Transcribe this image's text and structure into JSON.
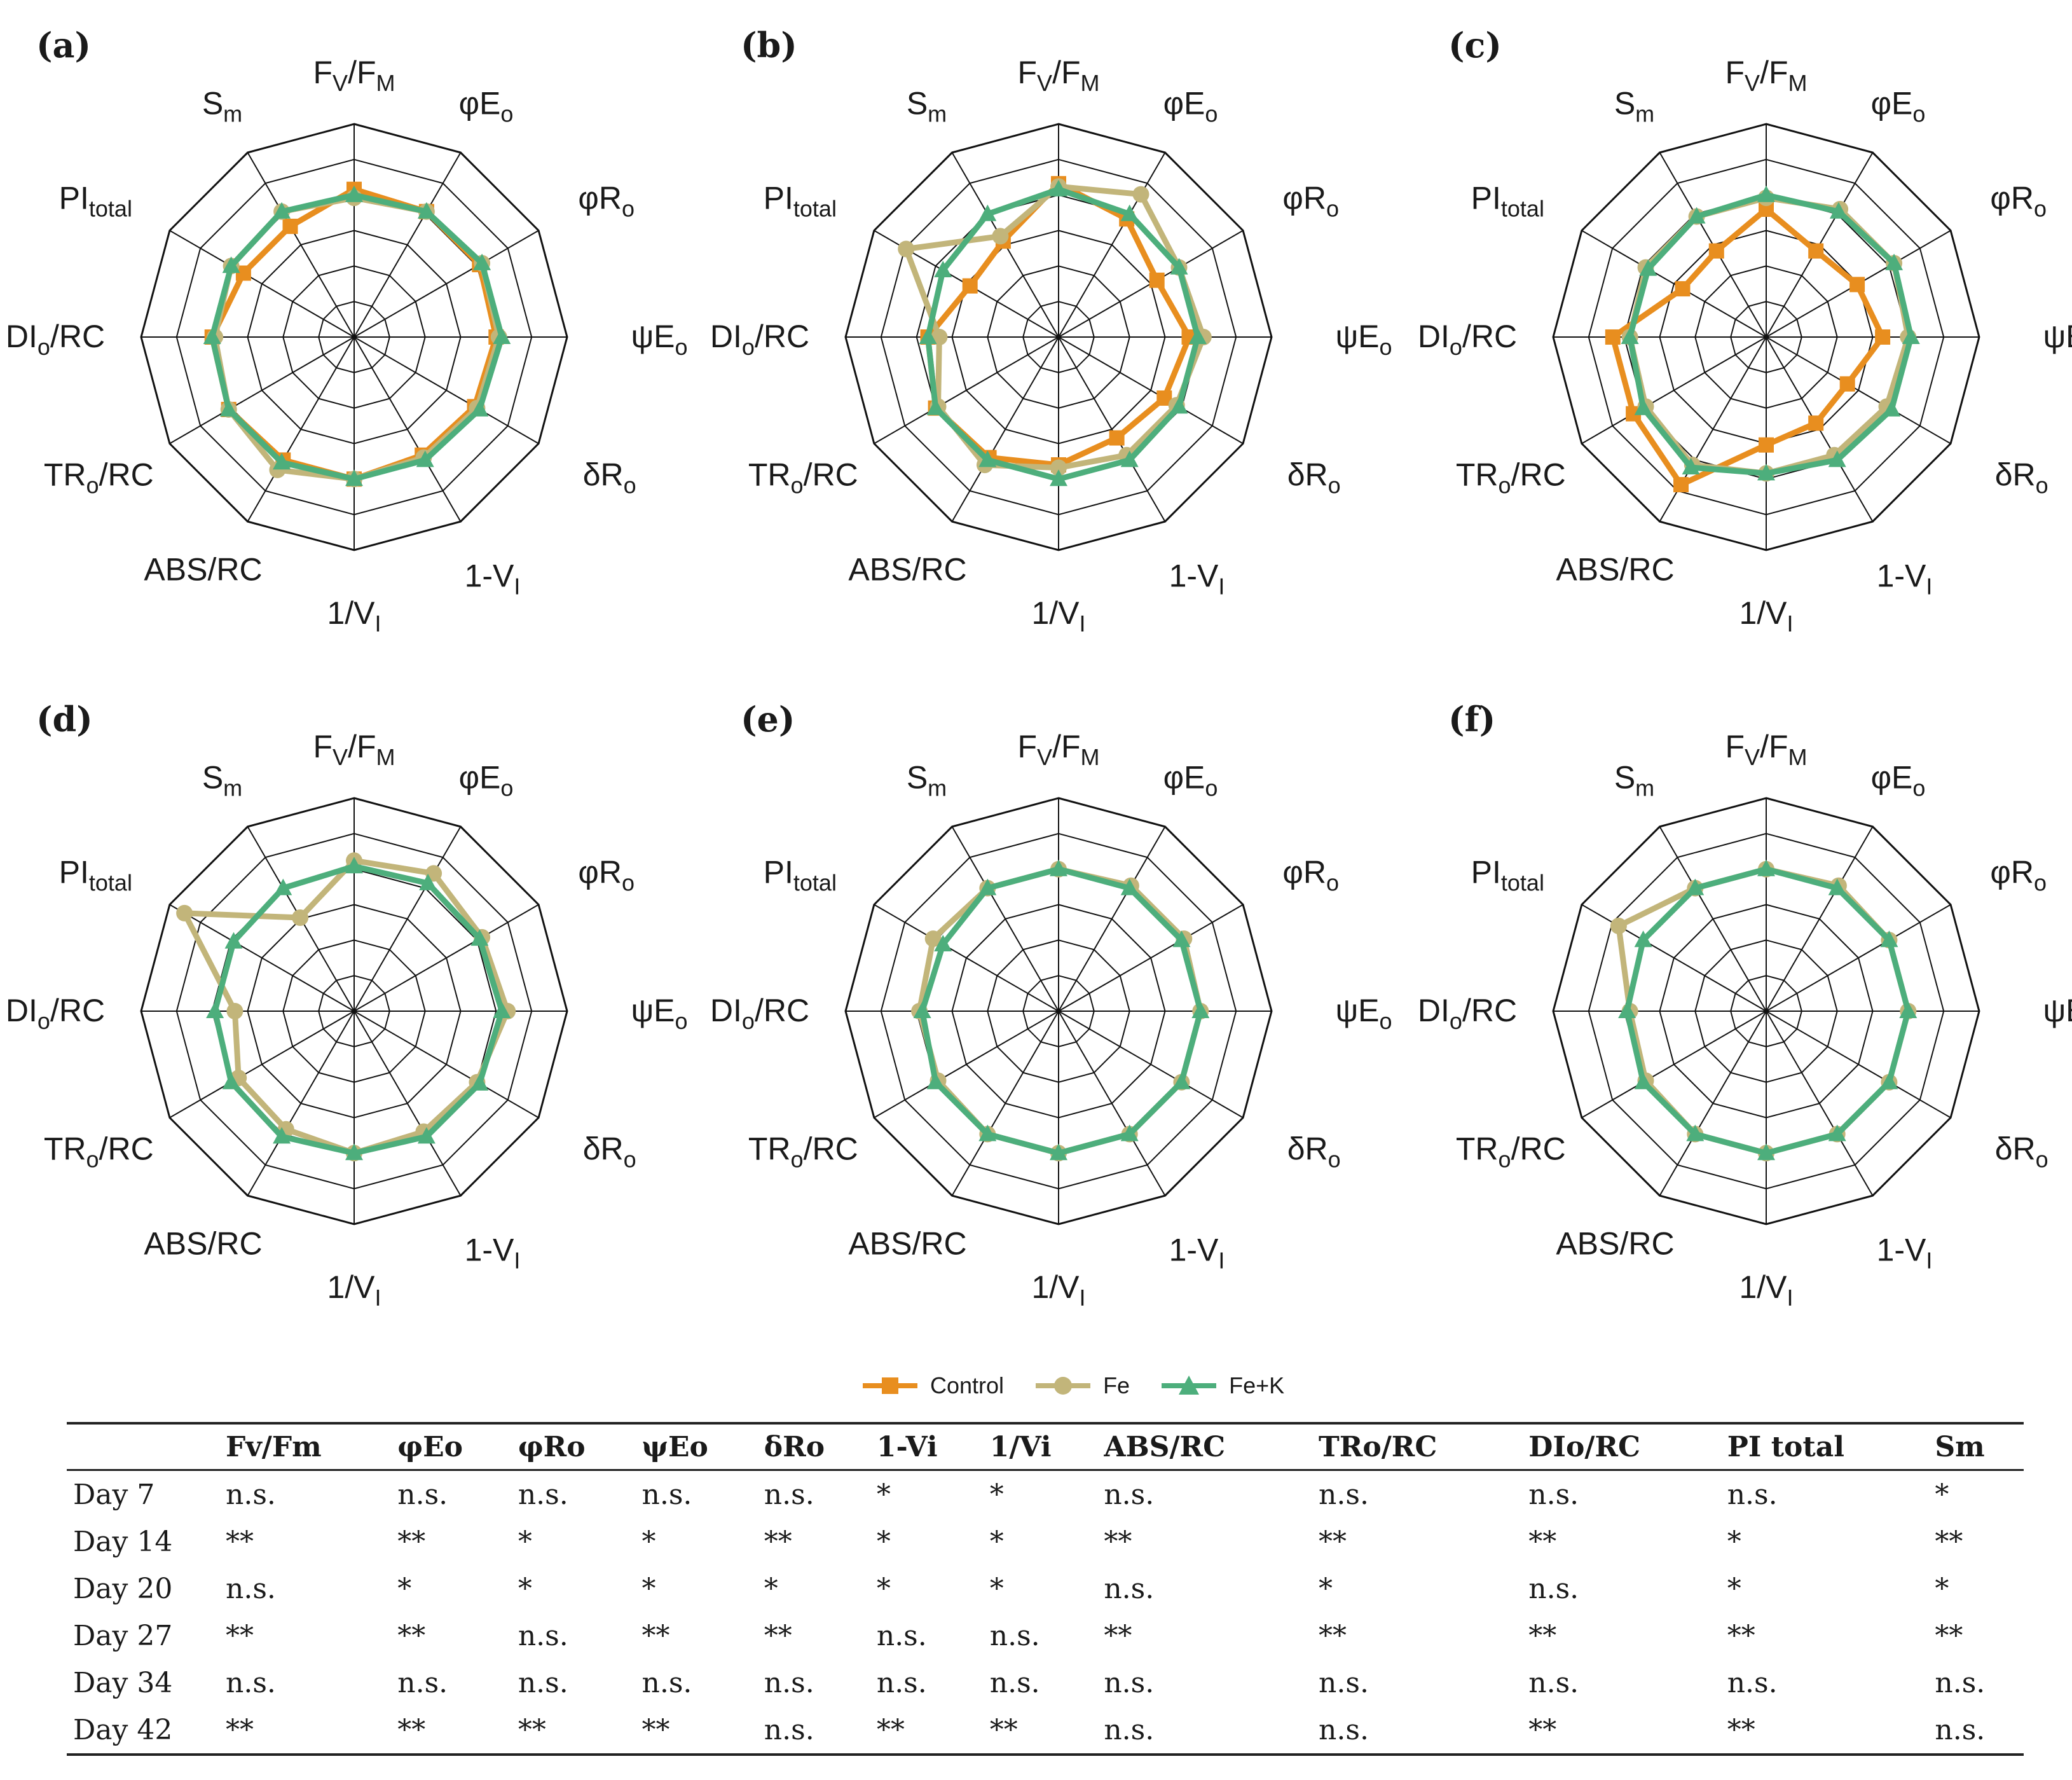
{
  "legend": [
    {
      "name": "Control",
      "color": "#E88E1F",
      "marker": "square"
    },
    {
      "name": "Fe",
      "color": "#C2B57A",
      "marker": "circle"
    },
    {
      "name": "Fe+K",
      "color": "#4DAE7C",
      "marker": "triangle"
    }
  ],
  "axes": [
    {
      "main": "F",
      "sub": "V",
      "mid": "/F",
      "sub2": "M"
    },
    {
      "main": "φE",
      "sub": "o"
    },
    {
      "main": "φR",
      "sub": "o"
    },
    {
      "main": "ψE",
      "sub": "o"
    },
    {
      "main": "δR",
      "sub": "o"
    },
    {
      "main": "1-V",
      "sub": "I"
    },
    {
      "main": "1/V",
      "sub": "I"
    },
    {
      "main": "ABS/RC"
    },
    {
      "main": "TR",
      "sub": "o",
      "mid": "/RC"
    },
    {
      "main": "DI",
      "sub": "o",
      "mid": "/RC"
    },
    {
      "main": "PI",
      "sub": "total"
    },
    {
      "main": "S",
      "sub": "m"
    }
  ],
  "chart_data": [
    {
      "type": "radar",
      "panel": "(a)",
      "rings": 6,
      "rmax": 1.5,
      "categories": [
        "FV/FM",
        "φEo",
        "φRo",
        "ψEo",
        "δRo",
        "1-VI",
        "1/VI",
        "ABS/RC",
        "TRo/RC",
        "DIo/RC",
        "PI total",
        "Sm"
      ],
      "series": [
        {
          "name": "Control",
          "values": [
            1.04,
            1.02,
            1.02,
            1.0,
            0.98,
            0.96,
            1.0,
            1.0,
            1.02,
            1.0,
            0.9,
            0.9
          ]
        },
        {
          "name": "Fe",
          "values": [
            0.98,
            1.02,
            1.04,
            1.02,
            1.0,
            0.98,
            1.0,
            1.08,
            1.02,
            0.98,
            1.0,
            1.02
          ]
        },
        {
          "name": "Fe+K",
          "values": [
            1.0,
            1.02,
            1.04,
            1.04,
            1.02,
            1.0,
            1.0,
            1.02,
            1.02,
            1.0,
            1.0,
            1.02
          ]
        }
      ]
    },
    {
      "type": "radar",
      "panel": "(b)",
      "rings": 6,
      "rmax": 1.5,
      "categories": [
        "FV/FM",
        "φEo",
        "φRo",
        "ψEo",
        "δRo",
        "1-VI",
        "1/VI",
        "ABS/RC",
        "TRo/RC",
        "DIo/RC",
        "PI total",
        "Sm"
      ],
      "series": [
        {
          "name": "Control",
          "values": [
            1.08,
            0.96,
            0.8,
            0.92,
            0.86,
            0.82,
            0.9,
            0.98,
            1.0,
            0.92,
            0.72,
            0.78
          ]
        },
        {
          "name": "Fe",
          "values": [
            1.06,
            1.16,
            0.98,
            1.02,
            0.96,
            0.96,
            0.92,
            1.04,
            0.98,
            0.84,
            1.24,
            0.82
          ]
        },
        {
          "name": "Fe+K",
          "values": [
            1.04,
            1.0,
            0.98,
            0.98,
            0.98,
            1.0,
            1.0,
            1.0,
            1.0,
            0.92,
            0.94,
            1.0
          ]
        }
      ]
    },
    {
      "type": "radar",
      "panel": "(c)",
      "rings": 6,
      "rmax": 1.5,
      "categories": [
        "FV/FM",
        "φEo",
        "φRo",
        "ψEo",
        "δRo",
        "1-VI",
        "1/VI",
        "ABS/RC",
        "TRo/RC",
        "DIo/RC",
        "PI total",
        "Sm"
      ],
      "series": [
        {
          "name": "Control",
          "values": [
            0.9,
            0.7,
            0.74,
            0.82,
            0.66,
            0.7,
            0.76,
            1.2,
            1.08,
            1.08,
            0.68,
            0.7
          ]
        },
        {
          "name": "Fe",
          "values": [
            0.98,
            1.04,
            1.04,
            1.0,
            0.98,
            0.96,
            0.96,
            1.04,
            0.98,
            0.96,
            0.98,
            0.98
          ]
        },
        {
          "name": "Fe+K",
          "values": [
            1.0,
            1.02,
            1.04,
            1.02,
            1.02,
            1.0,
            0.96,
            1.06,
            1.0,
            0.96,
            0.96,
            0.98
          ]
        }
      ]
    },
    {
      "type": "radar",
      "panel": "(d)",
      "rings": 6,
      "rmax": 1.5,
      "categories": [
        "FV/FM",
        "φEo",
        "φRo",
        "ψEo",
        "δRo",
        "1-VI",
        "1/VI",
        "ABS/RC",
        "TRo/RC",
        "DIo/RC",
        "PI total",
        "Sm"
      ],
      "series": [
        {
          "name": "Fe",
          "values": [
            1.06,
            1.12,
            1.04,
            1.08,
            1.0,
            0.98,
            1.0,
            0.96,
            0.94,
            0.84,
            1.38,
            0.76
          ]
        },
        {
          "name": "Fe+K",
          "values": [
            1.02,
            1.04,
            1.02,
            1.04,
            1.02,
            1.02,
            1.0,
            1.02,
            1.0,
            0.98,
            0.98,
            1.0
          ]
        }
      ]
    },
    {
      "type": "radar",
      "panel": "(e)",
      "rings": 6,
      "rmax": 1.5,
      "categories": [
        "FV/FM",
        "φEo",
        "φRo",
        "ψEo",
        "δRo",
        "1-VI",
        "1/VI",
        "ABS/RC",
        "TRo/RC",
        "DIo/RC",
        "PI total",
        "Sm"
      ],
      "series": [
        {
          "name": "Fe",
          "values": [
            1.0,
            1.02,
            1.02,
            1.0,
            1.0,
            1.0,
            1.0,
            1.0,
            0.98,
            0.98,
            1.02,
            1.0
          ]
        },
        {
          "name": "Fe+K",
          "values": [
            1.0,
            1.0,
            1.0,
            1.0,
            1.0,
            1.0,
            1.0,
            1.0,
            1.0,
            0.96,
            0.94,
            1.0
          ]
        }
      ]
    },
    {
      "type": "radar",
      "panel": "(f)",
      "rings": 6,
      "rmax": 1.5,
      "categories": [
        "FV/FM",
        "φEo",
        "φRo",
        "ψEo",
        "δRo",
        "1-VI",
        "1/VI",
        "ABS/RC",
        "TRo/RC",
        "DIo/RC",
        "PI total",
        "Sm"
      ],
      "series": [
        {
          "name": "Fe",
          "values": [
            1.0,
            1.02,
            1.0,
            1.0,
            1.0,
            1.0,
            1.0,
            1.0,
            0.98,
            0.96,
            1.2,
            1.0
          ]
        },
        {
          "name": "Fe+K",
          "values": [
            1.0,
            1.0,
            1.0,
            1.0,
            1.0,
            1.0,
            1.0,
            1.0,
            1.0,
            0.98,
            1.0,
            1.0
          ]
        }
      ]
    }
  ],
  "table": {
    "headers": [
      "",
      "Fv/Fm",
      "φEo",
      "φRo",
      "ψEo",
      "δRo",
      "1-Vi",
      "1/Vi",
      "ABS/RC",
      "TRo/RC",
      "DIo/RC",
      "PI total",
      "Sm"
    ],
    "rows": [
      [
        "Day 7",
        "n.s.",
        "n.s.",
        "n.s.",
        "n.s.",
        "n.s.",
        "*",
        "*",
        "n.s.",
        "n.s.",
        "n.s.",
        "n.s.",
        "*"
      ],
      [
        "Day 14",
        "**",
        "**",
        "*",
        "*",
        "**",
        "*",
        "*",
        "**",
        "**",
        "**",
        "*",
        "**"
      ],
      [
        "Day 20",
        "n.s.",
        "*",
        "*",
        "*",
        "*",
        "*",
        "*",
        "n.s.",
        "*",
        "n.s.",
        "*",
        "*"
      ],
      [
        "Day 27",
        "**",
        "**",
        "n.s.",
        "**",
        "**",
        "n.s.",
        "n.s.",
        "**",
        "**",
        "**",
        "**",
        "**"
      ],
      [
        "Day 34",
        "n.s.",
        "n.s.",
        "n.s.",
        "n.s.",
        "n.s.",
        "n.s.",
        "n.s.",
        "n.s.",
        "n.s.",
        "n.s.",
        "n.s.",
        "n.s."
      ],
      [
        "Day 42",
        "**",
        "**",
        "**",
        "**",
        "n.s.",
        "**",
        "**",
        "n.s.",
        "n.s.",
        "**",
        "**",
        "n.s."
      ]
    ]
  }
}
